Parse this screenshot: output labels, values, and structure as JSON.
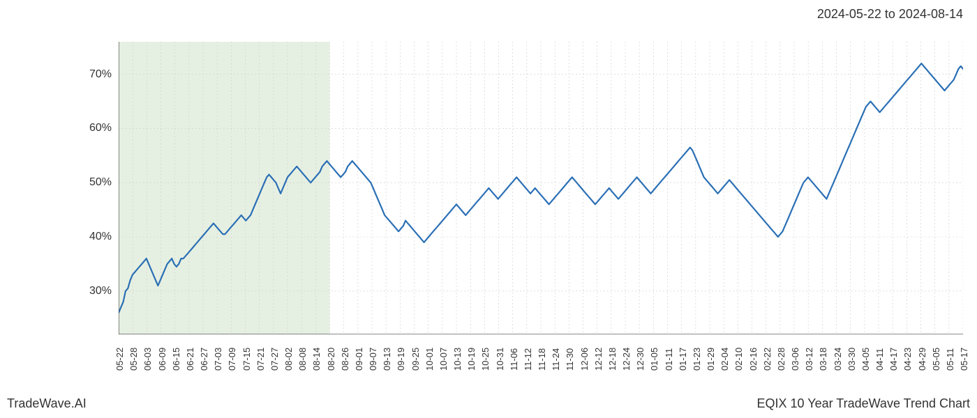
{
  "header": {
    "date_range": "2024-05-22 to 2024-08-14"
  },
  "footer": {
    "brand": "TradeWave.AI",
    "title": "EQIX 10 Year TradeWave Trend Chart"
  },
  "chart": {
    "type": "line",
    "background_color": "#ffffff",
    "plot_bg": "#ffffff",
    "highlight_region": {
      "x_start_idx": 0,
      "x_end_idx": 15,
      "fill": "#d9e8d3",
      "opacity": 0.65
    },
    "line": {
      "color": "#2a6fb5",
      "width": 2.2
    },
    "grid": {
      "color": "#cccccc",
      "dash": "2,3",
      "width": 0.6
    },
    "axis": {
      "spine_color": "#444444",
      "spine_width": 1.2
    },
    "y": {
      "min": 22,
      "max": 76,
      "ticks": [
        30,
        40,
        50,
        60,
        70
      ],
      "tick_labels": [
        "30%",
        "40%",
        "50%",
        "60%",
        "70%"
      ],
      "label_fontsize": 16,
      "label_color": "#333333"
    },
    "x": {
      "tick_labels": [
        "05-22",
        "05-28",
        "06-03",
        "06-09",
        "06-15",
        "06-21",
        "06-27",
        "07-03",
        "07-09",
        "07-15",
        "07-21",
        "07-27",
        "08-02",
        "08-08",
        "08-14",
        "08-20",
        "08-26",
        "09-01",
        "09-07",
        "09-13",
        "09-19",
        "09-25",
        "10-01",
        "10-07",
        "10-13",
        "10-19",
        "10-25",
        "10-31",
        "11-06",
        "11-12",
        "11-18",
        "11-24",
        "11-30",
        "12-06",
        "12-12",
        "12-18",
        "12-24",
        "12-30",
        "01-05",
        "01-11",
        "01-17",
        "01-23",
        "01-29",
        "02-04",
        "02-10",
        "02-16",
        "02-22",
        "02-28",
        "03-06",
        "03-12",
        "03-18",
        "03-24",
        "03-30",
        "04-05",
        "04-11",
        "04-17",
        "04-23",
        "04-29",
        "05-05",
        "05-11",
        "05-17"
      ],
      "label_fontsize": 13,
      "label_color": "#333333",
      "rotation": -90
    },
    "series": {
      "values": [
        26,
        27,
        28,
        30,
        30.5,
        32,
        33,
        33.5,
        34,
        34.5,
        35,
        35.5,
        36,
        35,
        34,
        33,
        32,
        31,
        32,
        33,
        34,
        35,
        35.5,
        36,
        35,
        34.5,
        35,
        36,
        36,
        36.5,
        37,
        37.5,
        38,
        38.5,
        39,
        39.5,
        40,
        40.5,
        41,
        41.5,
        42,
        42.5,
        42,
        41.5,
        41,
        40.5,
        40.5,
        41,
        41.5,
        42,
        42.5,
        43,
        43.5,
        44,
        43.5,
        43,
        43.5,
        44,
        45,
        46,
        47,
        48,
        49,
        50,
        51,
        51.5,
        51,
        50.5,
        50,
        49,
        48,
        49,
        50,
        51,
        51.5,
        52,
        52.5,
        53,
        52.5,
        52,
        51.5,
        51,
        50.5,
        50,
        50.5,
        51,
        51.5,
        52,
        53,
        53.5,
        54,
        53.5,
        53,
        52.5,
        52,
        51.5,
        51,
        51.5,
        52,
        53,
        53.5,
        54,
        53.5,
        53,
        52.5,
        52,
        51.5,
        51,
        50.5,
        50,
        49,
        48,
        47,
        46,
        45,
        44,
        43.5,
        43,
        42.5,
        42,
        41.5,
        41,
        41.5,
        42,
        43,
        42.5,
        42,
        41.5,
        41,
        40.5,
        40,
        39.5,
        39,
        39.5,
        40,
        40.5,
        41,
        41.5,
        42,
        42.5,
        43,
        43.5,
        44,
        44.5,
        45,
        45.5,
        46,
        45.5,
        45,
        44.5,
        44,
        44.5,
        45,
        45.5,
        46,
        46.5,
        47,
        47.5,
        48,
        48.5,
        49,
        48.5,
        48,
        47.5,
        47,
        47.5,
        48,
        48.5,
        49,
        49.5,
        50,
        50.5,
        51,
        50.5,
        50,
        49.5,
        49,
        48.5,
        48,
        48.5,
        49,
        48.5,
        48,
        47.5,
        47,
        46.5,
        46,
        46.5,
        47,
        47.5,
        48,
        48.5,
        49,
        49.5,
        50,
        50.5,
        51,
        50.5,
        50,
        49.5,
        49,
        48.5,
        48,
        47.5,
        47,
        46.5,
        46,
        46.5,
        47,
        47.5,
        48,
        48.5,
        49,
        48.5,
        48,
        47.5,
        47,
        47.5,
        48,
        48.5,
        49,
        49.5,
        50,
        50.5,
        51,
        50.5,
        50,
        49.5,
        49,
        48.5,
        48,
        48.5,
        49,
        49.5,
        50,
        50.5,
        51,
        51.5,
        52,
        52.5,
        53,
        53.5,
        54,
        54.5,
        55,
        55.5,
        56,
        56.5,
        56,
        55,
        54,
        53,
        52,
        51,
        50.5,
        50,
        49.5,
        49,
        48.5,
        48,
        48.5,
        49,
        49.5,
        50,
        50.5,
        50,
        49.5,
        49,
        48.5,
        48,
        47.5,
        47,
        46.5,
        46,
        45.5,
        45,
        44.5,
        44,
        43.5,
        43,
        42.5,
        42,
        41.5,
        41,
        40.5,
        40,
        40.5,
        41,
        42,
        43,
        44,
        45,
        46,
        47,
        48,
        49,
        50,
        50.5,
        51,
        50.5,
        50,
        49.5,
        49,
        48.5,
        48,
        47.5,
        47,
        48,
        49,
        50,
        51,
        52,
        53,
        54,
        55,
        56,
        57,
        58,
        59,
        60,
        61,
        62,
        63,
        64,
        64.5,
        65,
        64.5,
        64,
        63.5,
        63,
        63.5,
        64,
        64.5,
        65,
        65.5,
        66,
        66.5,
        67,
        67.5,
        68,
        68.5,
        69,
        69.5,
        70,
        70.5,
        71,
        71.5,
        72,
        71.5,
        71,
        70.5,
        70,
        69.5,
        69,
        68.5,
        68,
        67.5,
        67,
        67.5,
        68,
        68.5,
        69,
        70,
        71,
        71.5,
        71
      ]
    }
  }
}
